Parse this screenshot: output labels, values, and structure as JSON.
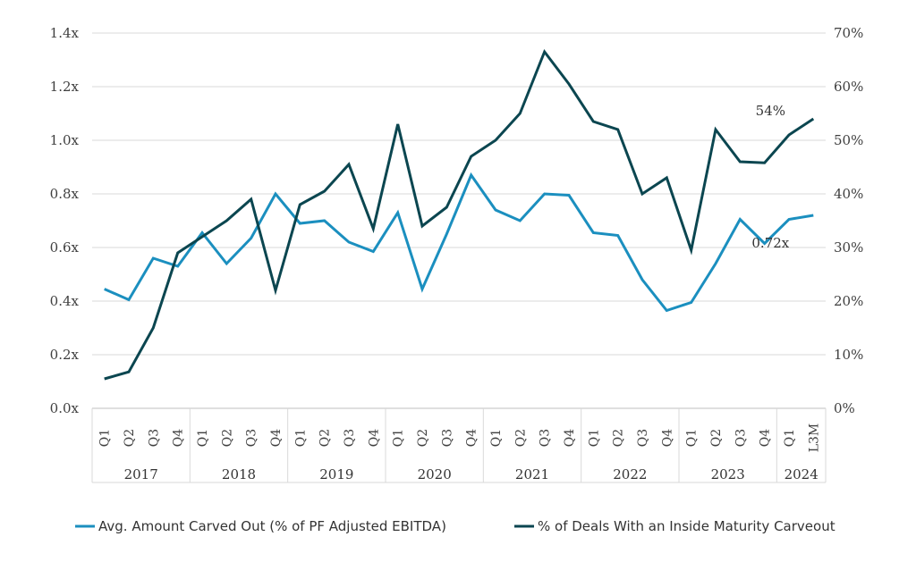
{
  "chart_data": {
    "type": "line",
    "x": [
      "2017 Q1",
      "2017 Q2",
      "2017 Q3",
      "2017 Q4",
      "2018 Q1",
      "2018 Q2",
      "2018 Q3",
      "2018 Q4",
      "2019 Q1",
      "2019 Q2",
      "2019 Q3",
      "2019 Q4",
      "2020 Q1",
      "2020 Q2",
      "2020 Q3",
      "2020 Q4",
      "2021 Q1",
      "2021 Q2",
      "2021 Q3",
      "2021 Q4",
      "2022 Q1",
      "2022 Q2",
      "2022 Q3",
      "2022 Q4",
      "2023 Q1",
      "2023 Q2",
      "2023 Q3",
      "2023 Q4",
      "2024 Q1",
      "2024 L3M"
    ],
    "quarter_labels": [
      "Q1",
      "Q2",
      "Q3",
      "Q4",
      "Q1",
      "Q2",
      "Q3",
      "Q4",
      "Q1",
      "Q2",
      "Q3",
      "Q4",
      "Q1",
      "Q2",
      "Q3",
      "Q4",
      "Q1",
      "Q2",
      "Q3",
      "Q4",
      "Q1",
      "Q2",
      "Q3",
      "Q4",
      "Q1",
      "Q2",
      "Q3",
      "Q4",
      "Q1",
      "L3M"
    ],
    "year_groups": [
      {
        "label": "2017",
        "count": 4
      },
      {
        "label": "2018",
        "count": 4
      },
      {
        "label": "2019",
        "count": 4
      },
      {
        "label": "2020",
        "count": 4
      },
      {
        "label": "2021",
        "count": 4
      },
      {
        "label": "2022",
        "count": 4
      },
      {
        "label": "2023",
        "count": 4
      },
      {
        "label": "2024",
        "count": 2
      }
    ],
    "series": [
      {
        "name": "Avg. Amount Carved Out (% of PF Adjusted EBITDA)",
        "axis": "left",
        "color": "#1b8fbf",
        "values": [
          0.445,
          0.405,
          0.56,
          0.53,
          0.655,
          0.54,
          0.635,
          0.8,
          0.69,
          0.7,
          0.62,
          0.585,
          0.73,
          0.445,
          0.65,
          0.87,
          0.74,
          0.7,
          0.8,
          0.795,
          0.655,
          0.645,
          0.48,
          0.365,
          0.395,
          0.54,
          0.705,
          0.615,
          0.705,
          0.72
        ]
      },
      {
        "name": "% of Deals With an Inside Maturity Carveout",
        "axis": "right",
        "color": "#0b4650",
        "values": [
          5.5,
          6.8,
          15,
          29,
          32,
          35,
          39,
          22,
          38,
          40.5,
          45.5,
          33.5,
          53,
          34,
          37.5,
          47,
          50,
          55,
          66.5,
          60.5,
          53.5,
          52,
          40,
          43,
          29.5,
          52,
          46,
          45.8,
          51,
          54
        ]
      }
    ],
    "y_left": {
      "min": 0,
      "max": 1.4,
      "step": 0.2,
      "tick_labels": [
        "0.0x",
        "0.2x",
        "0.4x",
        "0.6x",
        "0.8x",
        "1.0x",
        "1.2x",
        "1.4x"
      ]
    },
    "y_right": {
      "min": 0,
      "max": 70,
      "step": 10,
      "tick_labels": [
        "0%",
        "10%",
        "20%",
        "30%",
        "40%",
        "50%",
        "60%",
        "70%"
      ]
    },
    "annotations": [
      {
        "text": "54%",
        "series": 1,
        "index": 29
      },
      {
        "text": "0.72x",
        "series": 0,
        "index": 29
      }
    ],
    "grid": true,
    "legend_position": "bottom",
    "title": ""
  }
}
